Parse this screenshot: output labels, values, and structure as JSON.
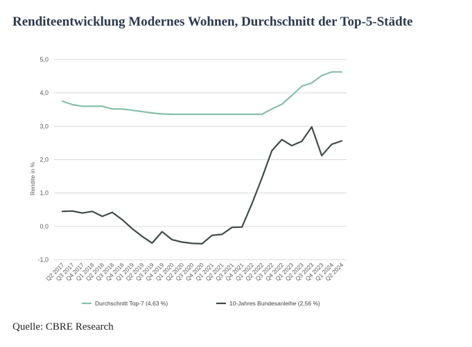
{
  "title": "Renditeentwicklung Modernes Wohnen, Durchschnitt der Top-5-Städte",
  "source": "Quelle: CBRE Research",
  "chart_data": {
    "type": "line",
    "ylabel": "Rendite in %",
    "xlabel": "",
    "ylim": [
      -1.0,
      5.0
    ],
    "yticks": [
      -1.0,
      0.0,
      1.0,
      2.0,
      3.0,
      4.0,
      5.0
    ],
    "ytick_labels": [
      "-1,0",
      "0,0",
      "1,0",
      "2,0",
      "3,0",
      "4,0",
      "5,0"
    ],
    "grid": true,
    "legend_position": "bottom",
    "categories": [
      "Q2 2017",
      "Q3 2017",
      "Q4 2017",
      "Q1 2018",
      "Q2 2018",
      "Q3 2018",
      "Q4 2018",
      "Q1 2019",
      "Q2 2019",
      "Q3 2019",
      "Q4 2019",
      "Q1 2020",
      "Q2 2020",
      "Q3 2020",
      "Q4 2020",
      "Q1 2021",
      "Q2 2021",
      "Q3 2021",
      "Q4 2021",
      "Q1 2022",
      "Q2 2022",
      "Q3 2022",
      "Q4 2022",
      "Q1 2023",
      "Q2 2023",
      "Q3 2023",
      "Q4 2023",
      "Q1 2024",
      "Q2 2024"
    ],
    "series": [
      {
        "name": "Durchschnitt Top-7 (4,63 %)",
        "color": "#86bfa7",
        "values": [
          3.75,
          3.65,
          3.6,
          3.6,
          3.6,
          3.52,
          3.52,
          3.48,
          3.44,
          3.4,
          3.37,
          3.36,
          3.36,
          3.36,
          3.36,
          3.36,
          3.36,
          3.36,
          3.36,
          3.36,
          3.36,
          3.52,
          3.66,
          3.92,
          4.2,
          4.3,
          4.52,
          4.63,
          4.63
        ]
      },
      {
        "name": "10-Jahres Bundesanleihe (2,56 %)",
        "color": "#3f4a48",
        "values": [
          0.45,
          0.46,
          0.4,
          0.45,
          0.3,
          0.42,
          0.2,
          -0.07,
          -0.3,
          -0.5,
          -0.16,
          -0.4,
          -0.47,
          -0.51,
          -0.52,
          -0.27,
          -0.24,
          -0.03,
          -0.02,
          0.68,
          1.45,
          2.27,
          2.6,
          2.42,
          2.55,
          2.98,
          2.12,
          2.46,
          2.56
        ]
      }
    ]
  }
}
